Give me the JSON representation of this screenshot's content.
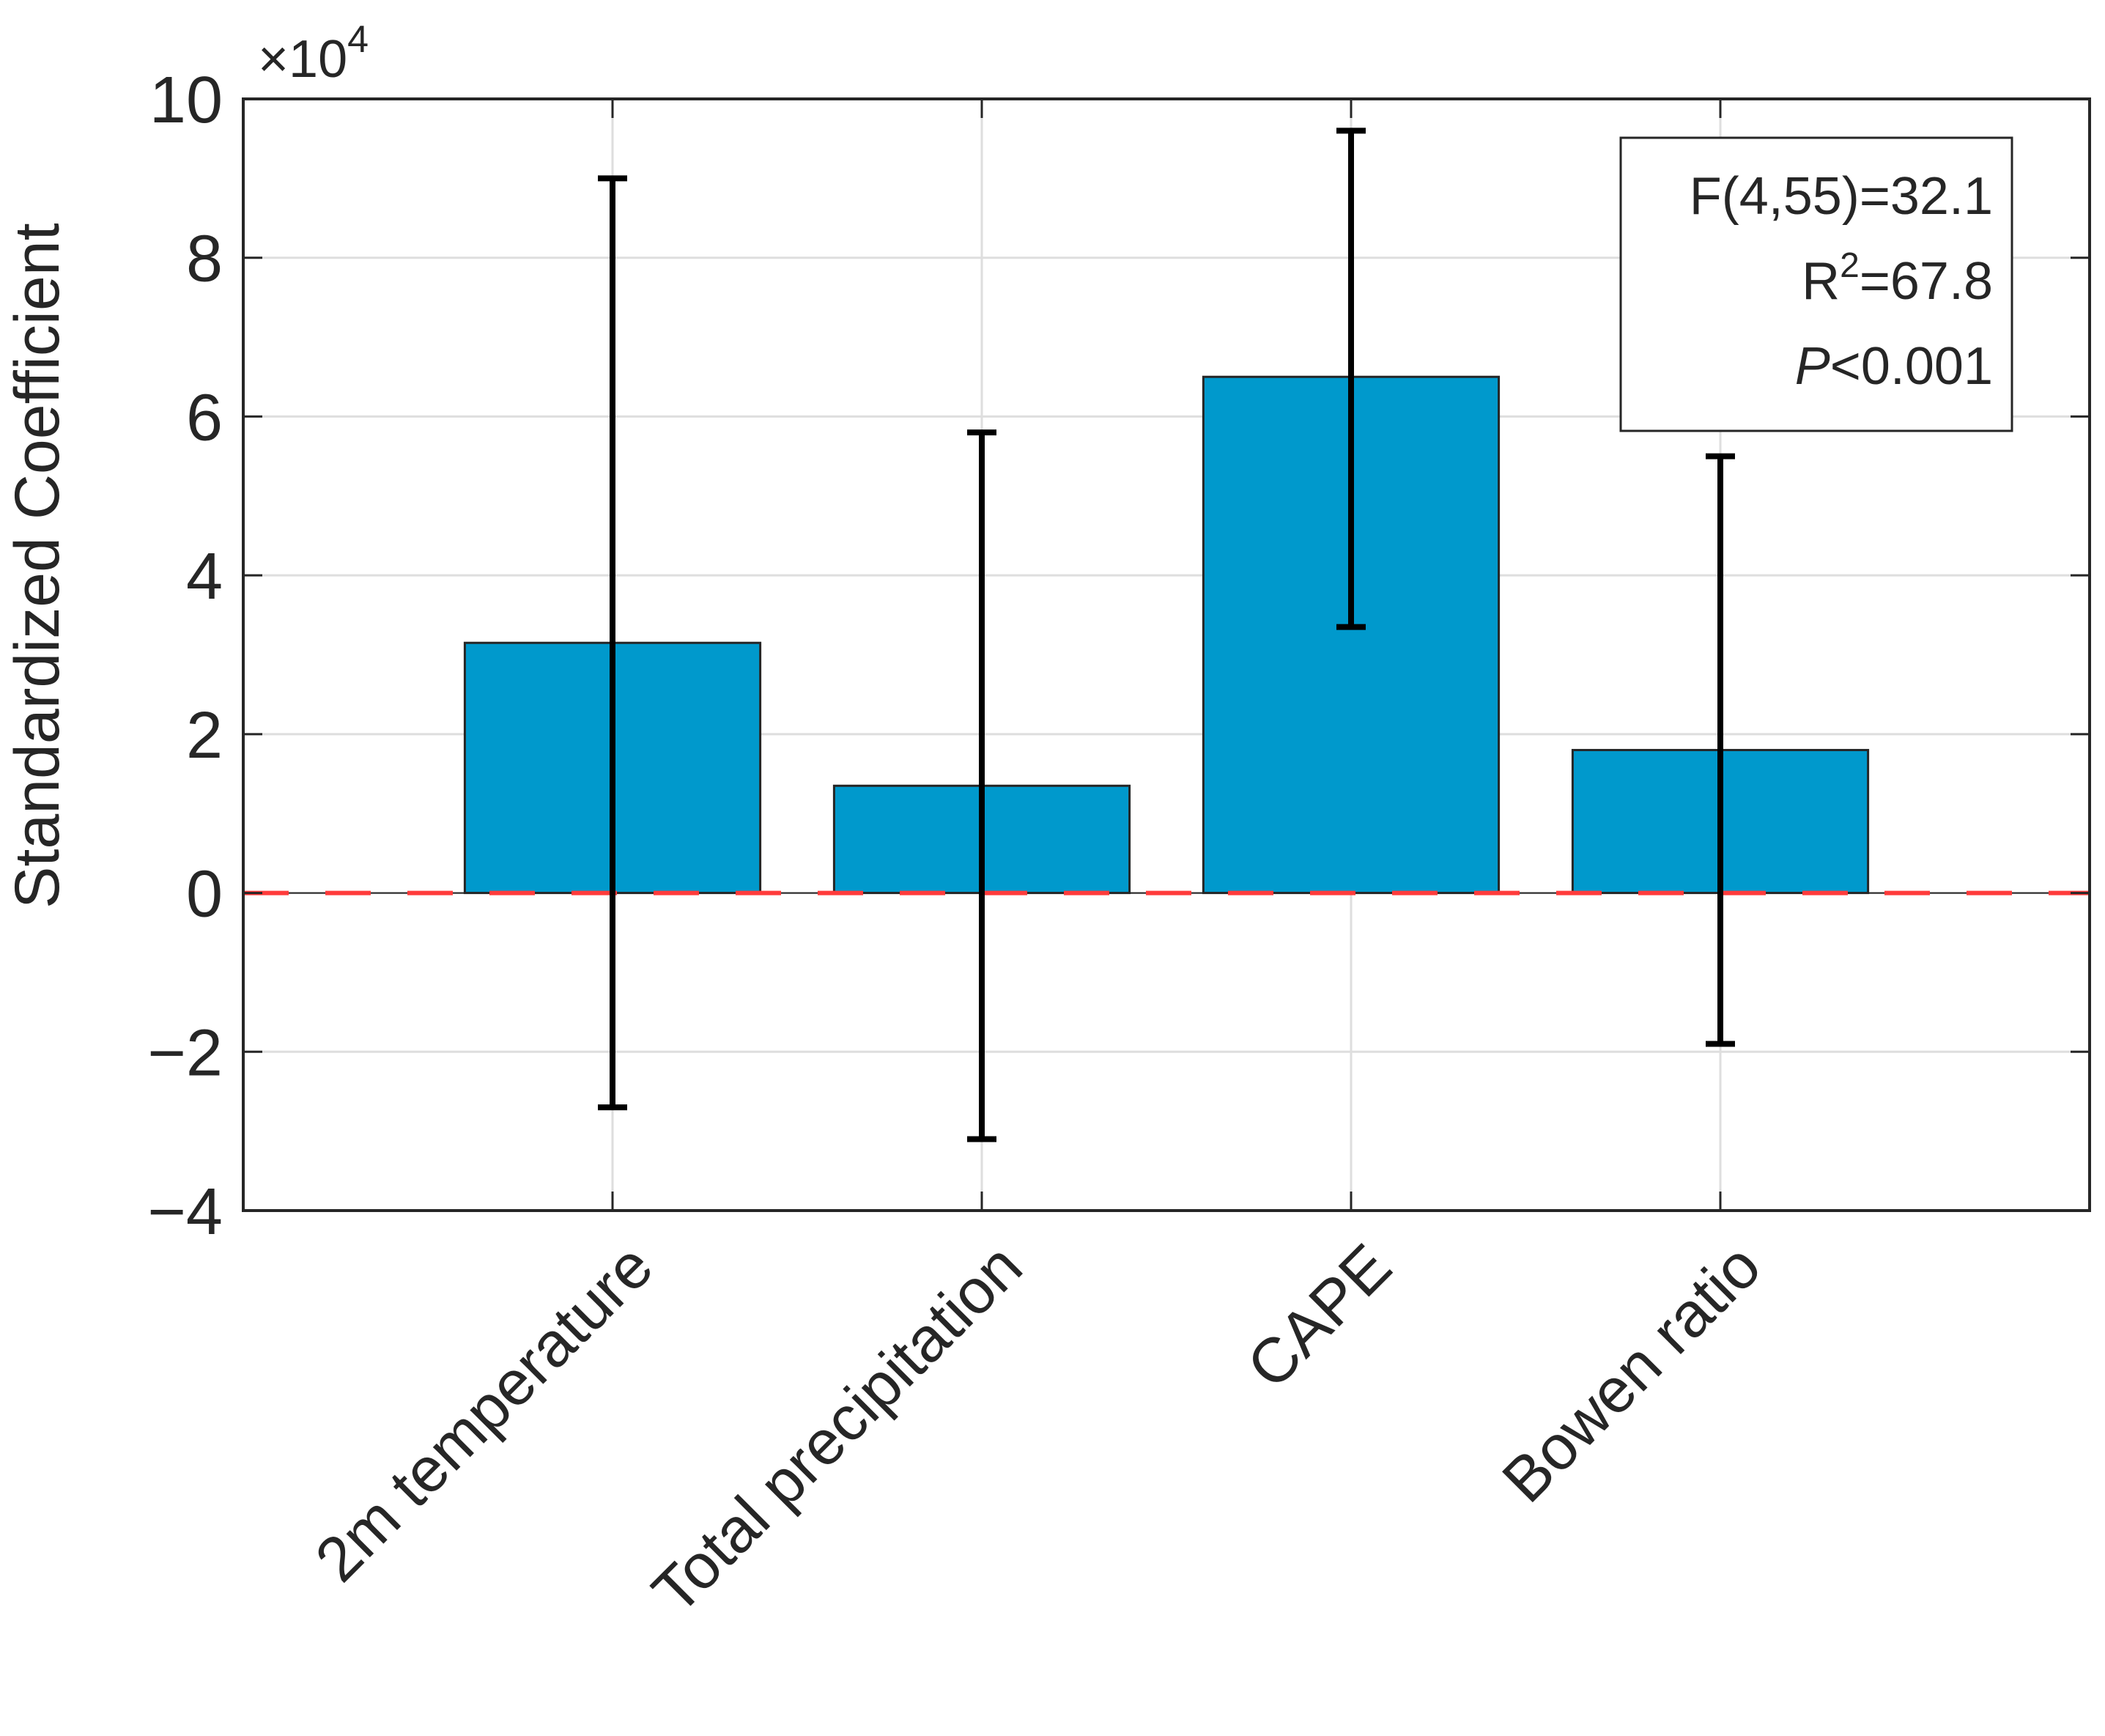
{
  "chart_data": {
    "type": "bar",
    "title": "",
    "xlabel": "",
    "ylabel": "Standardized Coefficient",
    "y_exponent_label": "×10",
    "y_exponent_power": "4",
    "y_scale": 10000,
    "ylim": [
      -40000,
      100000
    ],
    "yticks": [
      -4,
      -2,
      0,
      2,
      4,
      6,
      8,
      10
    ],
    "ytick_labels": [
      "−4",
      "−2",
      "0",
      "2",
      "4",
      "6",
      "8",
      "10"
    ],
    "xlim": [
      0,
      5
    ],
    "categories": [
      "2m temperature",
      "Total precipitation",
      "CAPE",
      "Bowen ratio"
    ],
    "values": [
      31500,
      13500,
      65000,
      18000
    ],
    "error_low": [
      -27000,
      -31000,
      33500,
      -19000
    ],
    "error_high": [
      90000,
      58000,
      96000,
      55000
    ],
    "bar_color": "#0099cc",
    "error_color": "#000000",
    "reference_line": {
      "y": 0,
      "color": "#ff3b3b",
      "style": "dashed"
    },
    "grid": true,
    "stats": {
      "f_stat": "F(4,55)=32.1",
      "r2_prefix": "R",
      "r2_power": "2",
      "r2_value": "=67.8",
      "p_symbol": "P",
      "p_value": "<0.001"
    }
  }
}
